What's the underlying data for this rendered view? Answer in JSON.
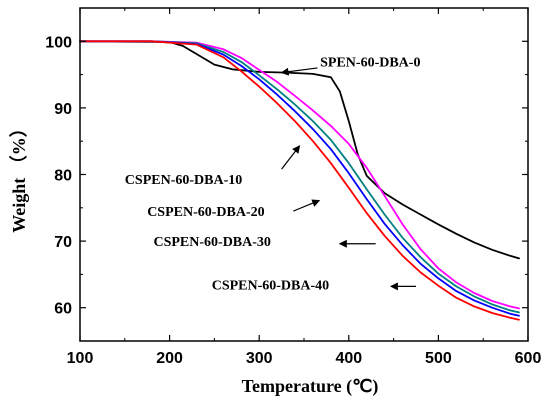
{
  "chart_data": {
    "type": "line",
    "xlabel": "Temperature (℃)",
    "ylabel": "Weight （%）",
    "xlim": [
      100,
      600
    ],
    "ylim": [
      55,
      105
    ],
    "xticks": [
      100,
      200,
      300,
      400,
      500,
      600
    ],
    "yticks": [
      60,
      70,
      80,
      90,
      100
    ],
    "grid": false,
    "series": [
      {
        "name": "SPEN-60-DBA-0",
        "color": "#000000",
        "x": [
          100,
          200,
          215,
          230,
          250,
          270,
          300,
          330,
          360,
          380,
          390,
          400,
          410,
          420,
          440,
          460,
          480,
          500,
          520,
          540,
          560,
          580,
          590
        ],
        "y": [
          100,
          99.9,
          99.3,
          98.1,
          96.5,
          95.8,
          95.4,
          95.3,
          95.1,
          94.6,
          92.5,
          88.0,
          83.0,
          79.8,
          77.2,
          75.5,
          74.0,
          72.5,
          71.1,
          69.8,
          68.7,
          67.8,
          67.4
        ]
      },
      {
        "name": "CSPEN-60-DBA-10",
        "color": "#ff00ff",
        "x": [
          100,
          180,
          230,
          260,
          280,
          300,
          320,
          340,
          360,
          380,
          400,
          420,
          440,
          460,
          480,
          500,
          520,
          540,
          560,
          580,
          590
        ],
        "y": [
          100,
          100,
          99.8,
          98.8,
          97.5,
          95.7,
          93.9,
          91.8,
          89.6,
          87.3,
          84.6,
          81.0,
          76.8,
          72.5,
          68.8,
          65.9,
          63.8,
          62.2,
          61.0,
          60.2,
          59.9
        ]
      },
      {
        "name": "CSPEN-60-DBA-20",
        "color": "#008080",
        "x": [
          100,
          180,
          230,
          260,
          280,
          300,
          320,
          340,
          360,
          380,
          400,
          420,
          440,
          460,
          480,
          500,
          520,
          540,
          560,
          580,
          590
        ],
        "y": [
          100,
          100,
          99.7,
          98.4,
          96.9,
          94.9,
          92.8,
          90.5,
          88.0,
          85.2,
          81.7,
          77.8,
          74.0,
          70.5,
          67.6,
          65.1,
          63.2,
          61.7,
          60.5,
          59.6,
          59.3
        ]
      },
      {
        "name": "CSPEN-60-DBA-30",
        "color": "#0000ff",
        "x": [
          100,
          180,
          230,
          260,
          280,
          300,
          320,
          340,
          360,
          380,
          400,
          420,
          440,
          460,
          480,
          500,
          520,
          540,
          560,
          580,
          590
        ],
        "y": [
          100,
          100,
          99.6,
          98.0,
          96.3,
          94.3,
          92.0,
          89.5,
          86.8,
          83.8,
          80.2,
          76.3,
          72.6,
          69.4,
          66.6,
          64.4,
          62.5,
          61.1,
          60.0,
          59.1,
          58.8
        ]
      },
      {
        "name": "CSPEN-60-DBA-40",
        "color": "#ff0000",
        "x": [
          100,
          180,
          230,
          260,
          280,
          300,
          320,
          340,
          360,
          380,
          400,
          420,
          440,
          460,
          480,
          500,
          520,
          540,
          560,
          580,
          590
        ],
        "y": [
          100,
          100,
          99.5,
          97.6,
          95.5,
          93.2,
          90.7,
          88.0,
          85.0,
          81.7,
          78.0,
          74.2,
          70.8,
          67.8,
          65.3,
          63.3,
          61.5,
          60.2,
          59.2,
          58.5,
          58.2
        ]
      }
    ],
    "annotations": [
      {
        "text": "SPEN-60-DBA-0",
        "series": "SPEN-60-DBA-0",
        "label_at": [
          368,
          96.2
        ],
        "arrow_from": [
          365,
          96.0
        ],
        "arrow_to": [
          325,
          95.3
        ]
      },
      {
        "text": "CSPEN-60-DBA-10",
        "series": "CSPEN-60-DBA-10",
        "label_at": [
          150,
          78.6
        ],
        "arrow_from": [
          325,
          80.8
        ],
        "arrow_to": [
          345,
          84.3
        ]
      },
      {
        "text": "CSPEN-60-DBA-20",
        "series": "CSPEN-60-DBA-20",
        "label_at": [
          175,
          73.8
        ],
        "arrow_from": [
          338,
          74.5
        ],
        "arrow_to": [
          367,
          76.1
        ]
      },
      {
        "text": "CSPEN-60-DBA-30",
        "series": "CSPEN-60-DBA-30",
        "label_at": [
          182,
          69.3
        ],
        "arrow_from": [
          430,
          69.6
        ],
        "arrow_to": [
          390,
          69.6
        ]
      },
      {
        "text": "CSPEN-60-DBA-40",
        "series": "CSPEN-60-DBA-40",
        "label_at": [
          247,
          62.7
        ],
        "arrow_from": [
          475,
          63.2
        ],
        "arrow_to": [
          447,
          63.2
        ]
      }
    ]
  }
}
